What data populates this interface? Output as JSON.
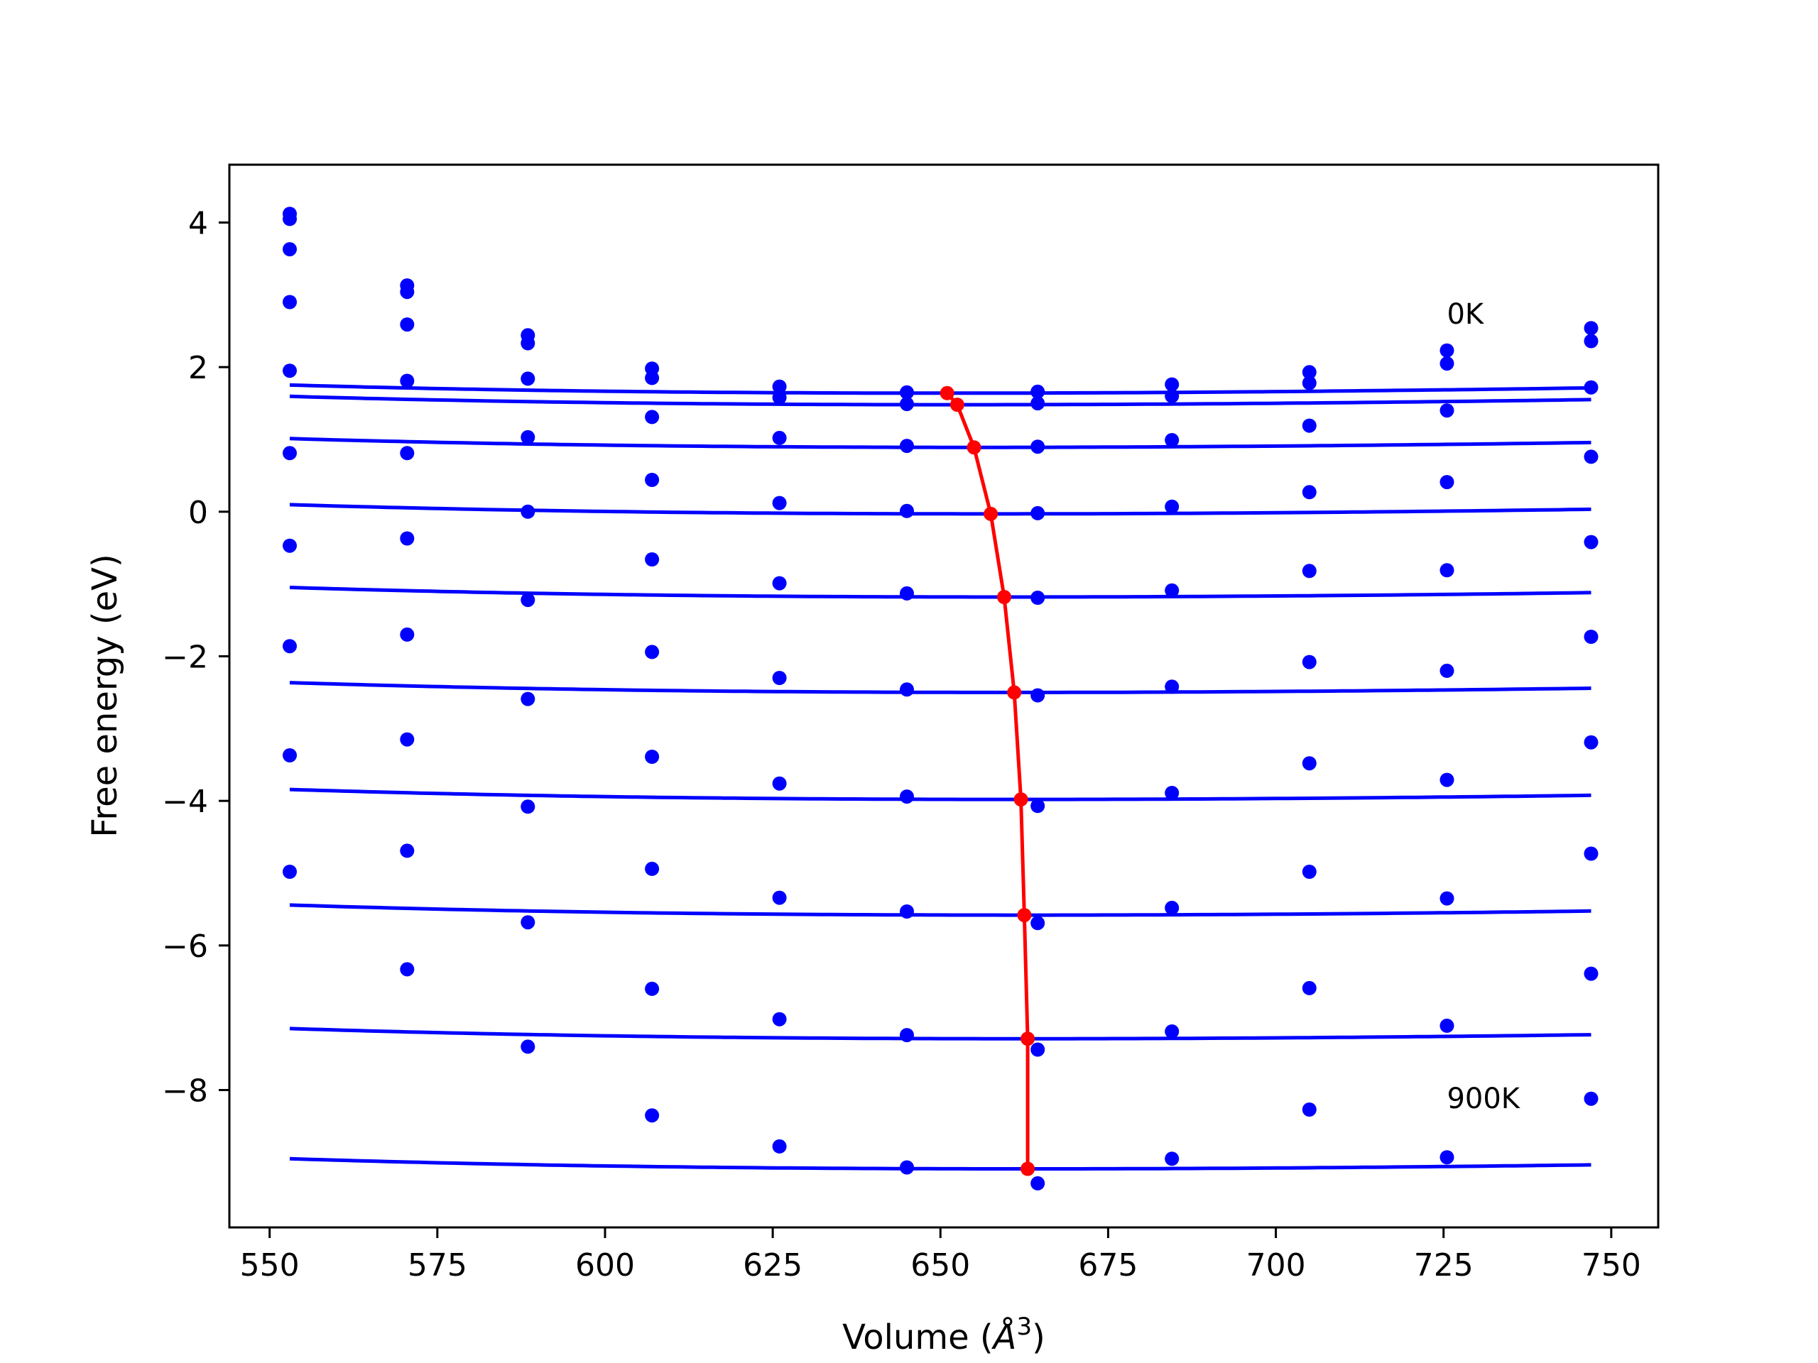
{
  "chart_data": {
    "type": "line",
    "title": "",
    "xlabel": "Volume",
    "xlabel_unit_base": "Å",
    "xlabel_unit_exp": "3",
    "ylabel": "Free energy (eV)",
    "xlim": [
      544,
      757
    ],
    "ylim": [
      -9.9,
      4.8
    ],
    "xticks": [
      550,
      575,
      600,
      625,
      650,
      675,
      700,
      725,
      750
    ],
    "xtick_labels": [
      "550",
      "575",
      "600",
      "625",
      "650",
      "675",
      "700",
      "725",
      "750"
    ],
    "yticks": [
      -8,
      -6,
      -4,
      -2,
      0,
      2,
      4
    ],
    "ytick_labels": [
      "−8",
      "−6",
      "−4",
      "−2",
      "0",
      "2",
      "4"
    ],
    "grid": false,
    "legend": "none",
    "annotations": [
      {
        "text": "0K",
        "x": 725.5,
        "y": 2.6
      },
      {
        "text": "900K",
        "x": 725.5,
        "y": -8.25
      }
    ],
    "colors": {
      "curves": "#0000ff",
      "minimum_path": "#ff0000",
      "frame": "#000000"
    },
    "volumes": [
      553,
      570.5,
      588.5,
      607,
      626,
      645,
      664.5,
      684.5,
      705,
      725.5,
      747
    ],
    "series": [
      {
        "values": [
          4.12,
          3.13,
          2.44,
          1.98,
          1.73,
          1.65,
          1.66,
          1.76,
          1.93,
          2.23,
          2.54
        ],
        "fit": {
          "v0": 651.0,
          "e0": 1.64,
          "b": 1.0
        }
      },
      {
        "values": [
          4.05,
          3.04,
          2.33,
          1.85,
          1.58,
          1.49,
          1.5,
          1.6,
          1.78,
          2.05,
          2.36
        ],
        "fit": {
          "v0": 652.5,
          "e0": 1.48,
          "b": 1.0
        }
      },
      {
        "values": [
          3.63,
          2.59,
          1.84,
          1.31,
          1.02,
          0.91,
          0.9,
          0.99,
          1.19,
          1.4,
          1.72
        ],
        "fit": {
          "v0": 655.0,
          "e0": 0.89,
          "b": 1.0
        }
      },
      {
        "values": [
          2.9,
          1.81,
          1.03,
          0.44,
          0.12,
          0.01,
          -0.02,
          0.07,
          0.27,
          0.41,
          0.76
        ],
        "fit": {
          "v0": 657.5,
          "e0": -0.03,
          "b": 1.0
        }
      },
      {
        "values": [
          1.95,
          0.81,
          0.0,
          -0.66,
          -0.99,
          -1.13,
          -1.19,
          -1.09,
          -0.82,
          -0.81,
          -0.42
        ],
        "fit": {
          "v0": 659.5,
          "e0": -1.18,
          "b": 1.0
        }
      },
      {
        "values": [
          0.81,
          -0.37,
          -1.22,
          -1.94,
          -2.3,
          -2.46,
          -2.54,
          -2.42,
          -2.08,
          -2.2,
          -1.73
        ],
        "fit": {
          "v0": 661.0,
          "e0": -2.5,
          "b": 1.0
        }
      },
      {
        "values": [
          -0.47,
          -1.7,
          -2.59,
          -3.39,
          -3.76,
          -3.94,
          -4.07,
          -3.89,
          -3.48,
          -3.71,
          -3.19
        ],
        "fit": {
          "v0": 662.0,
          "e0": -3.98,
          "b": 1.0
        }
      },
      {
        "values": [
          -1.86,
          -3.15,
          -4.08,
          -4.94,
          -5.34,
          -5.53,
          -5.69,
          -5.48,
          -4.98,
          -5.35,
          -4.73
        ],
        "fit": {
          "v0": 662.5,
          "e0": -5.58,
          "b": 1.0
        }
      },
      {
        "values": [
          -3.37,
          -4.69,
          -5.68,
          -6.6,
          -7.02,
          -7.24,
          -7.44,
          -7.19,
          -6.59,
          -7.11,
          -6.39
        ],
        "fit": {
          "v0": 663.0,
          "e0": -7.29,
          "b": 1.0
        }
      },
      {
        "values": [
          -4.98,
          -6.33,
          -7.4,
          -8.35,
          -8.78,
          -9.07,
          -9.29,
          -8.95,
          -8.27,
          -8.93,
          -8.12
        ],
        "fit": {
          "v0": 663.0,
          "e0": -9.09,
          "b": 1.0
        }
      }
    ],
    "minimum_path": {
      "x": [
        651.0,
        652.5,
        655.0,
        657.5,
        659.5,
        661.0,
        662.0,
        662.5,
        663.0,
        663.0
      ],
      "y": [
        1.64,
        1.48,
        0.89,
        -0.03,
        -1.18,
        -2.5,
        -3.98,
        -5.58,
        -7.29,
        -9.09
      ]
    }
  }
}
